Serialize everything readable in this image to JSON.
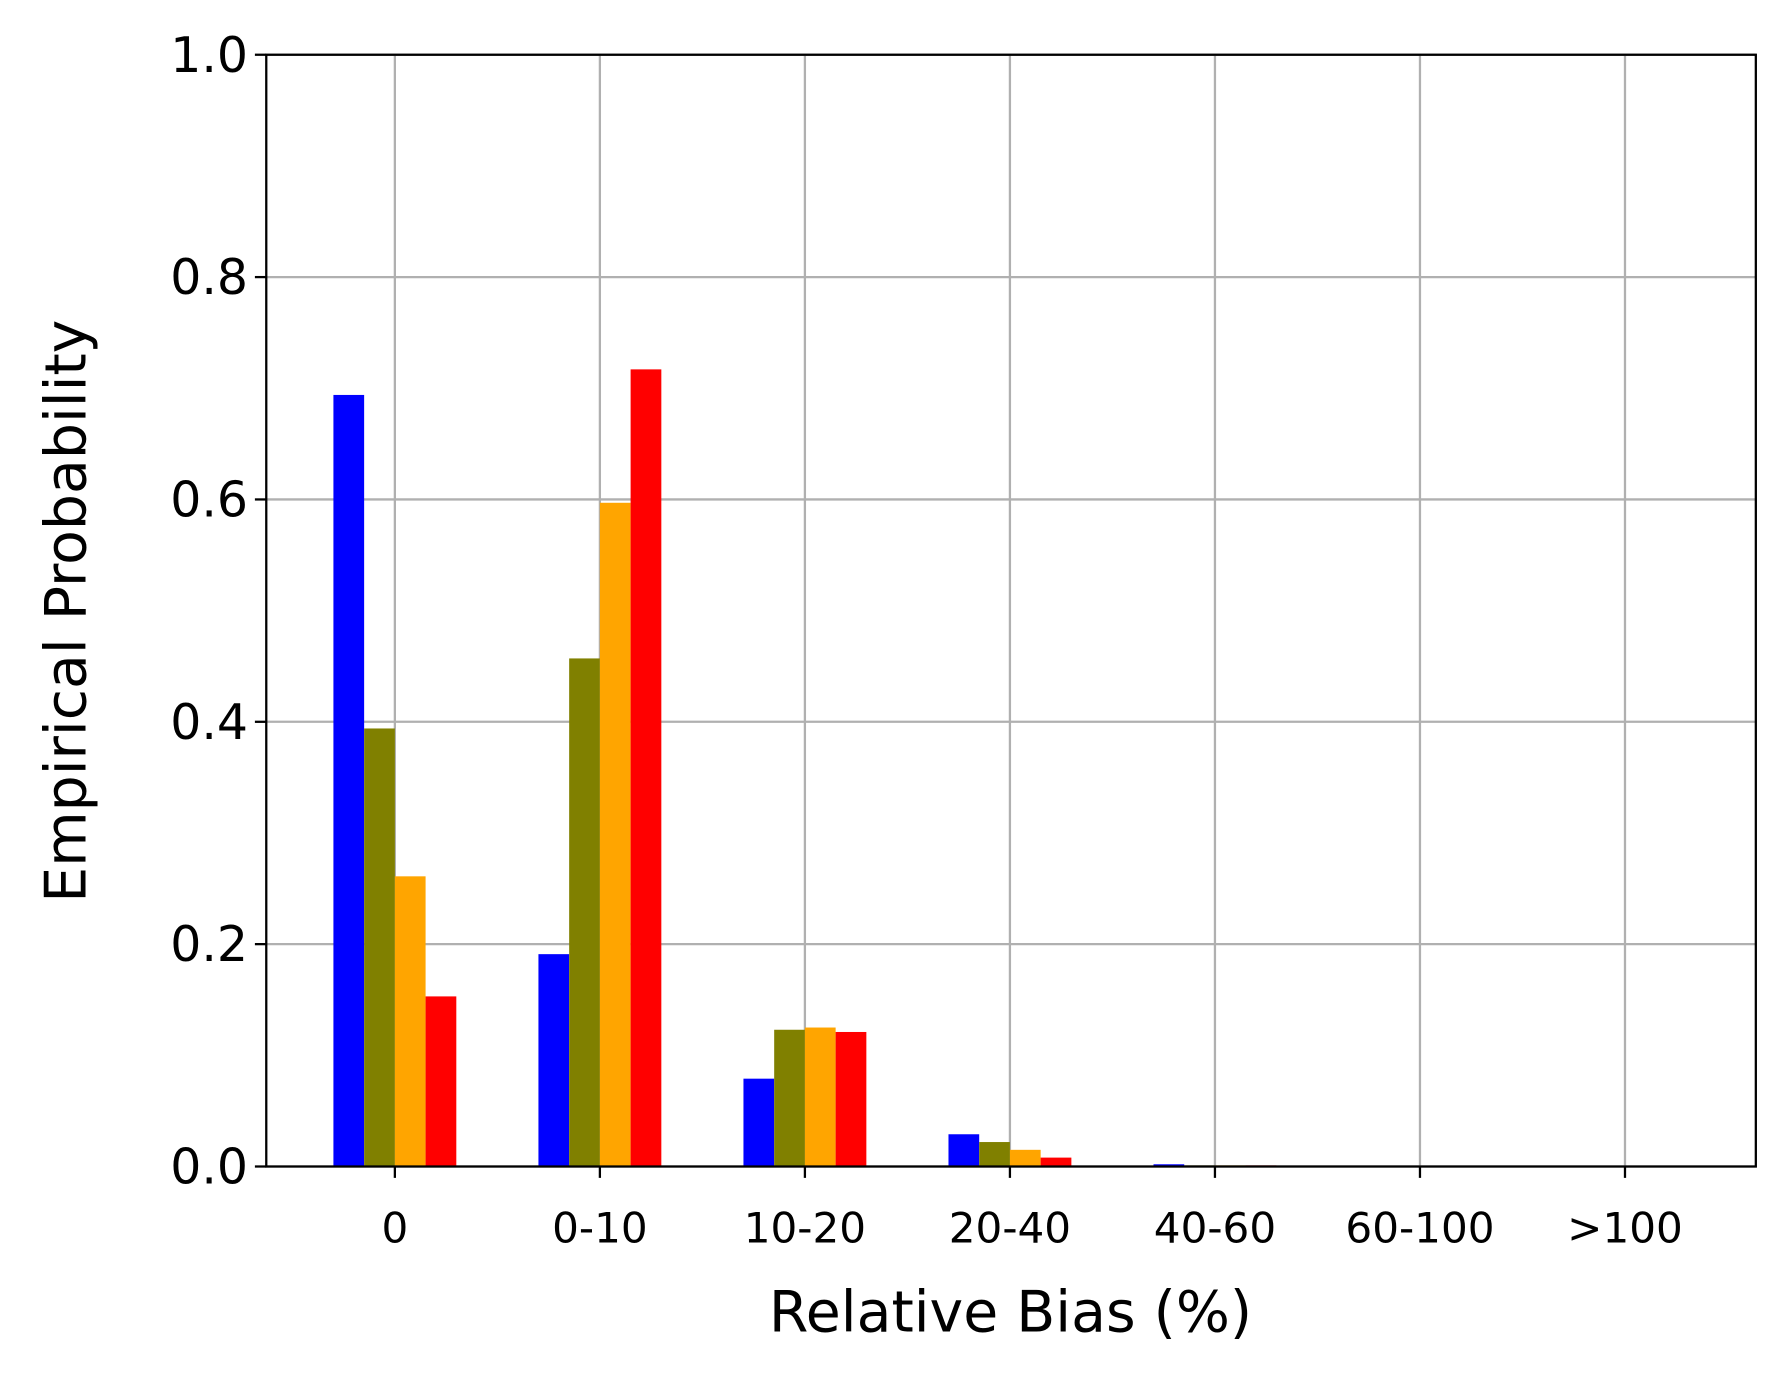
{
  "chart_data": {
    "type": "bar",
    "xlabel": "Relative Bias (%)",
    "ylabel": "Empirical Probability",
    "categories": [
      "0",
      "0-10",
      "10-20",
      "20-40",
      "40-60",
      "60-100",
      ">100"
    ],
    "series": [
      {
        "color": "#0000ff",
        "values": [
          0.694,
          0.191,
          0.079,
          0.029,
          0.002,
          0,
          0
        ]
      },
      {
        "color": "#808000",
        "values": [
          0.394,
          0.457,
          0.123,
          0.022,
          0.001,
          0,
          0
        ]
      },
      {
        "color": "#ffa500",
        "values": [
          0.261,
          0.597,
          0.125,
          0.015,
          0.001,
          0,
          0
        ]
      },
      {
        "color": "#ff0000",
        "values": [
          0.153,
          0.717,
          0.121,
          0.008,
          0.001,
          0,
          0
        ]
      }
    ],
    "ylim": [
      0,
      1
    ],
    "yticks": [
      {
        "value": 0,
        "label": "0.0"
      },
      {
        "value": 0.2,
        "label": "0.2"
      },
      {
        "value": 0.4,
        "label": "0.4"
      },
      {
        "value": 0.6,
        "label": "0.6"
      },
      {
        "value": 0.8,
        "label": "0.8"
      },
      {
        "value": 1,
        "label": "1.0"
      }
    ],
    "grid": true
  }
}
